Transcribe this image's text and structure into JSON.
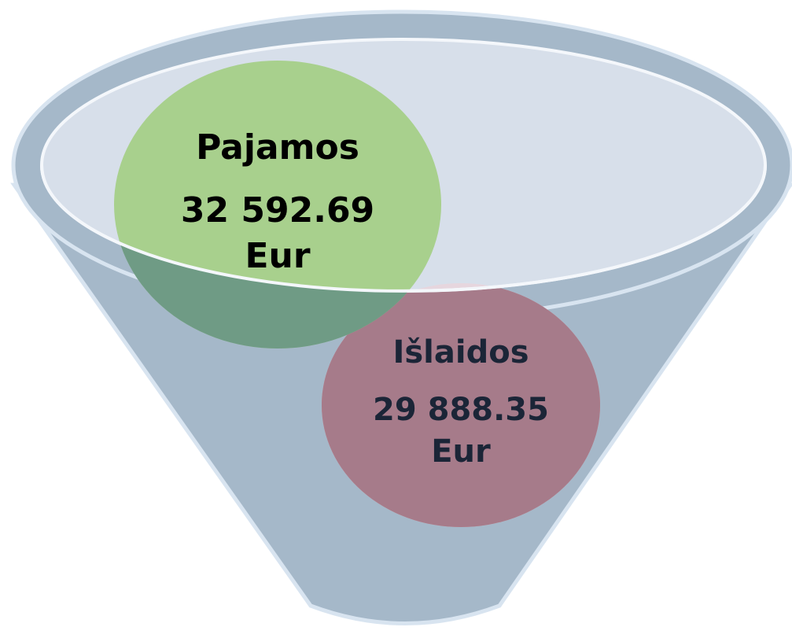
{
  "items": [
    {
      "label": "Pajamos",
      "amount": "32 592.69",
      "unit": "Eur"
    },
    {
      "label": "Išlaidos",
      "amount": "29 888.35",
      "unit": "Eur"
    }
  ]
}
